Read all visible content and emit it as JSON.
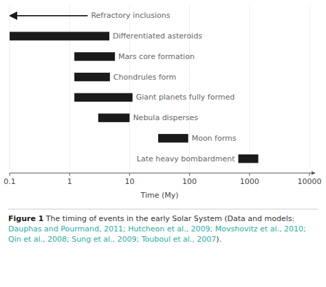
{
  "chart_data": {
    "type": "bar",
    "orientation": "horizontal",
    "log": "x",
    "color": "#1a1a1a",
    "categories": [
      "Refractory inclusions",
      "Differentiated asteroids",
      "Mars core formation",
      "Chondrules form",
      "Giant planets fully formed",
      "Nebula disperses",
      "Moon forms",
      "Late heavy bombardment"
    ],
    "series": [
      {
        "type": "arrow",
        "x_start": [
          0.1,
          null,
          null,
          null,
          null,
          null,
          null,
          null
        ],
        "x_end": [
          2.0,
          null,
          null,
          null,
          null,
          null,
          null,
          null
        ]
      },
      {
        "type": "bar",
        "left": [
          null,
          0.1,
          1.2,
          1.2,
          1.2,
          3.0,
          30.0,
          650.0
        ],
        "values": [
          null,
          4.5,
          4.5,
          3.5,
          10.0,
          7.0,
          65.0,
          750.0
        ]
      }
    ],
    "xlim": [
      0.1,
      10000
    ],
    "xticks": [
      0.1,
      1,
      10,
      100,
      1000,
      10000
    ],
    "xlabel": "Time (My)",
    "caption": [
      {
        "text": "Figure 1",
        "bold": true
      },
      {
        "text": " The timing of events in the early Solar System (Data and models: "
      },
      {
        "text": "Dauphas and Pourmand, 2011; Hutcheon et al., 2009; Movshovitz et al., 2010; Qin et al., 2008; Sung et al., 2009; Touboul et al., 2007",
        "color": "#2aada0"
      },
      {
        "text": ")."
      }
    ]
  }
}
